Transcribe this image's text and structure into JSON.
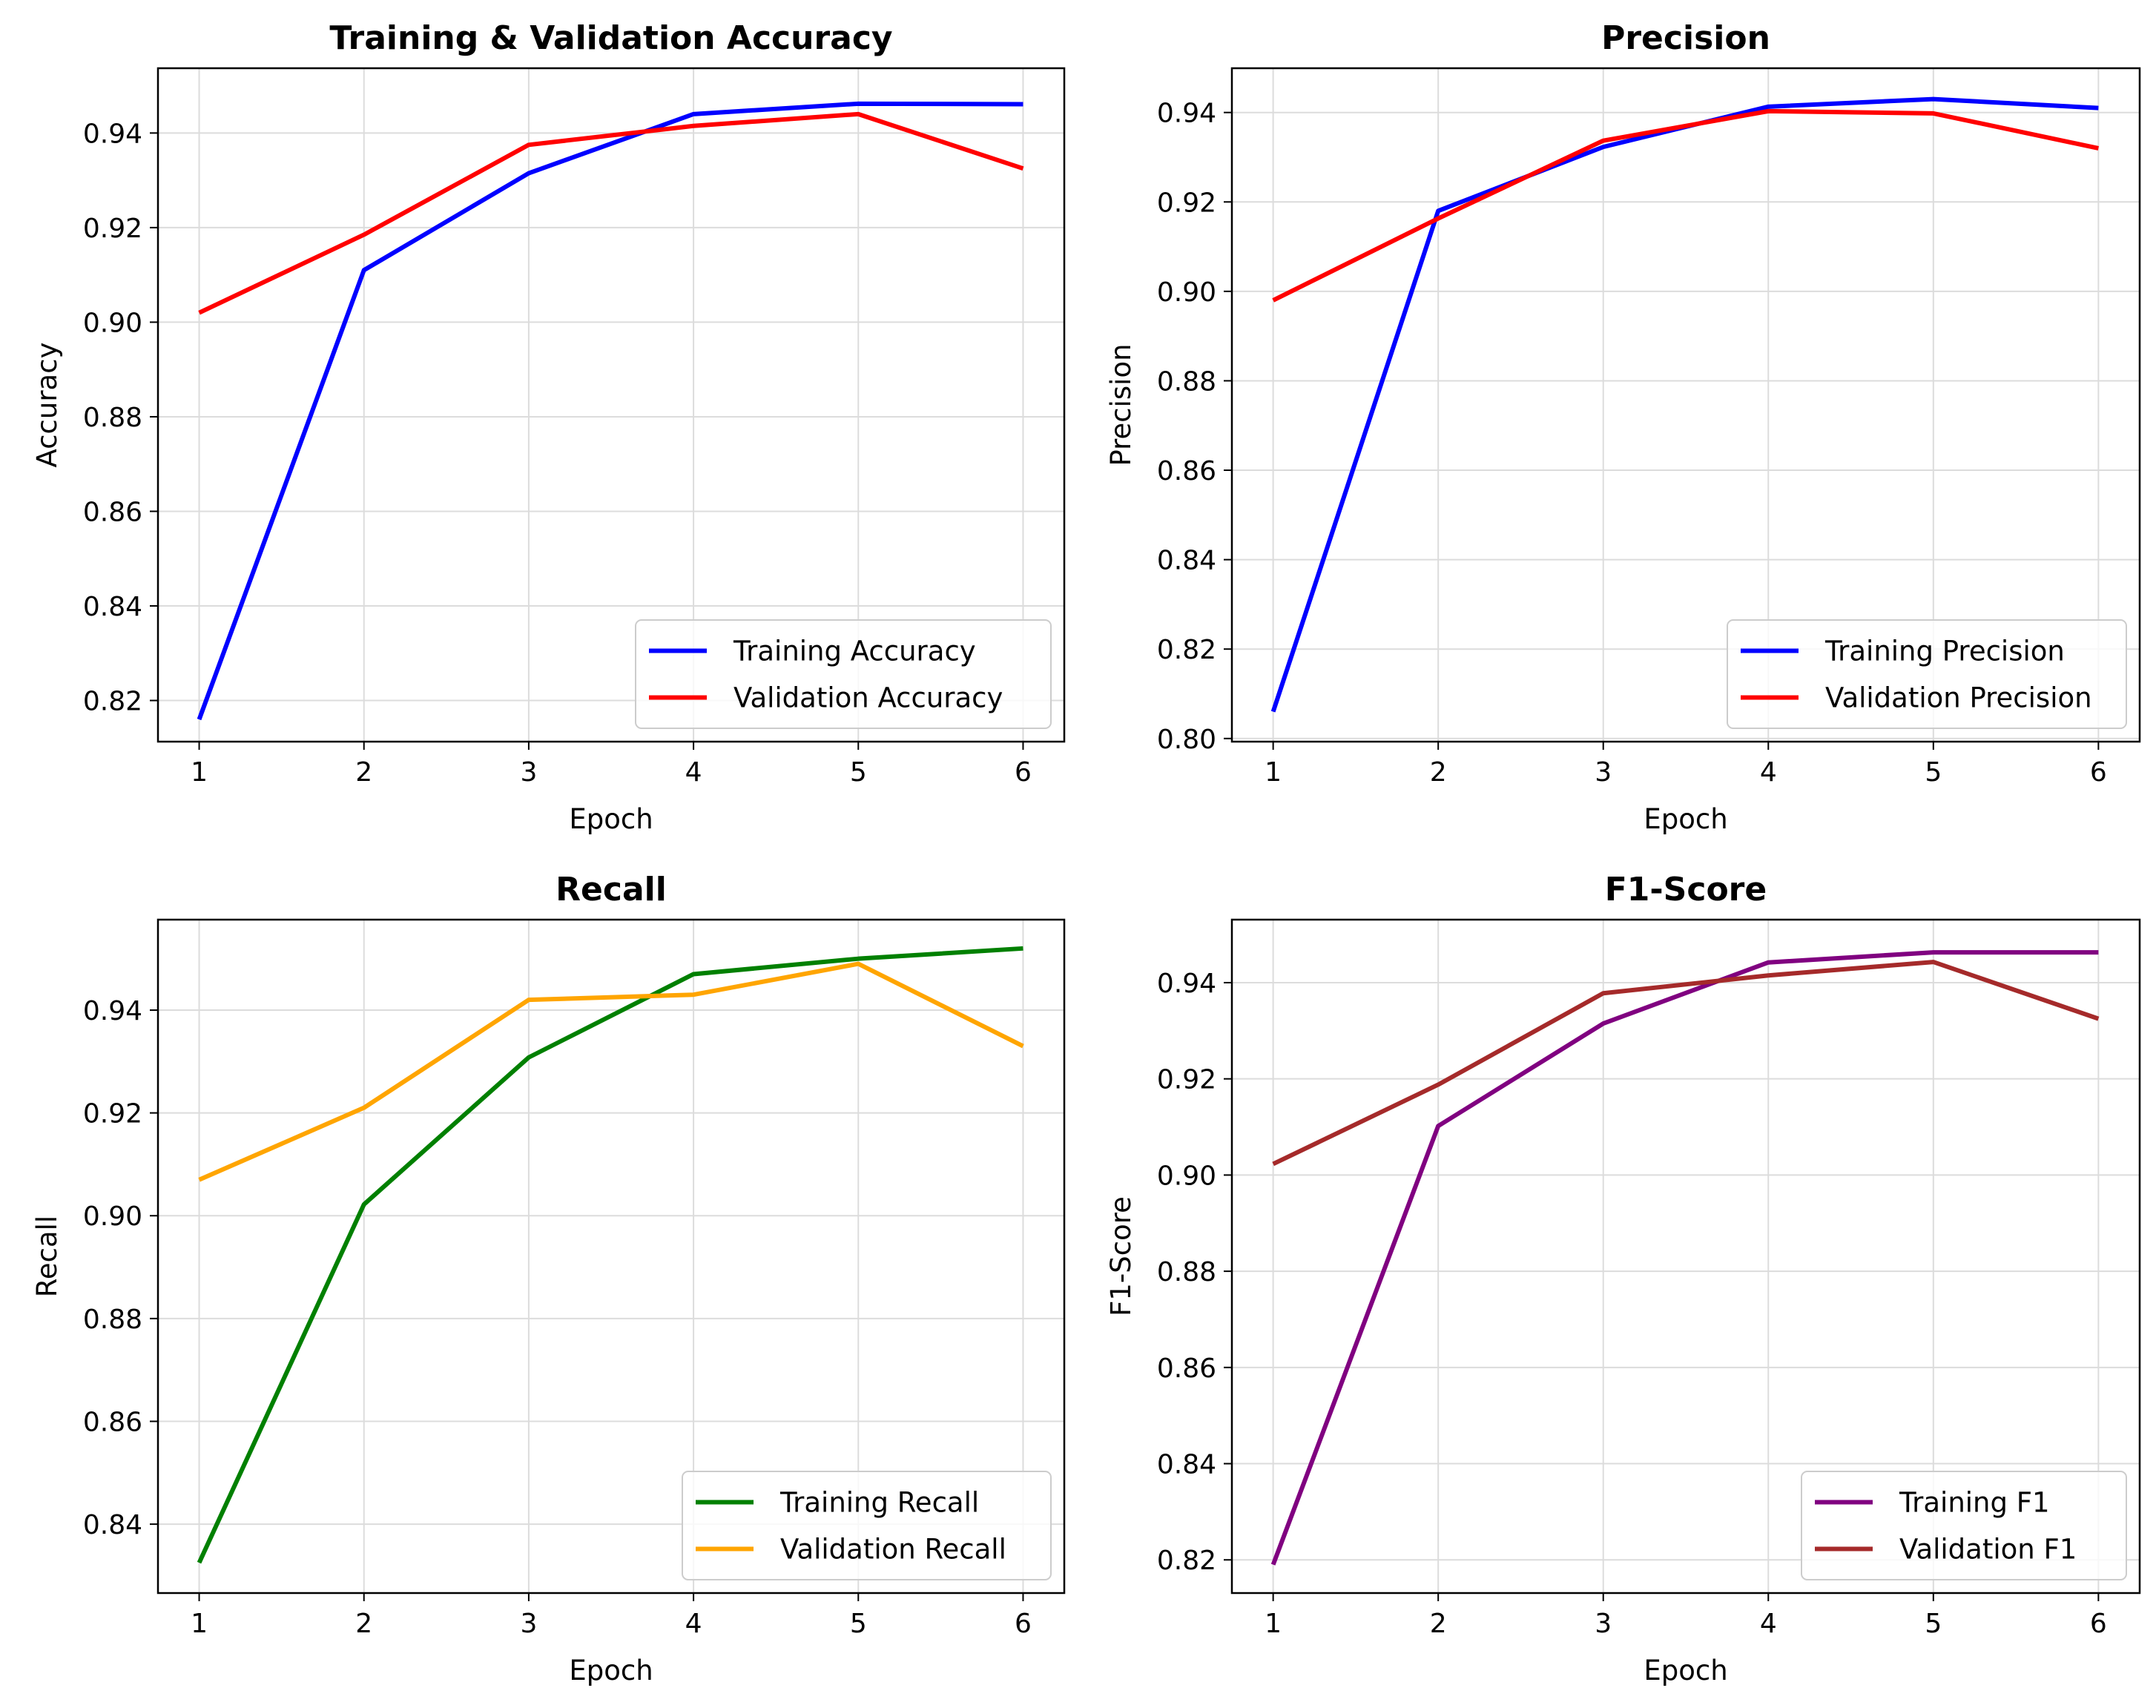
{
  "chart_data": [
    {
      "type": "line",
      "title": "Training & Validation Accuracy",
      "xlabel": "Epoch",
      "ylabel": "Accuracy",
      "x": [
        1,
        2,
        3,
        4,
        5,
        6
      ],
      "xticks": [
        "1",
        "2",
        "3",
        "4",
        "5",
        "6"
      ],
      "yticks": [
        "0.82",
        "0.84",
        "0.86",
        "0.88",
        "0.90",
        "0.92",
        "0.94"
      ],
      "xlim": [
        0.75,
        6.25
      ],
      "ylim": [
        0.8113,
        0.9537
      ],
      "grid": true,
      "legend_placement": "lower-right",
      "series": [
        {
          "name": "Training Accuracy",
          "color": "#0000ff",
          "values": [
            0.816,
            0.911,
            0.9315,
            0.944,
            0.9462,
            0.9461
          ]
        },
        {
          "name": "Validation Accuracy",
          "color": "#ff0000",
          "values": [
            0.902,
            0.9185,
            0.9375,
            0.9415,
            0.944,
            0.9325
          ]
        }
      ]
    },
    {
      "type": "line",
      "title": "Precision",
      "xlabel": "Epoch",
      "ylabel": "Precision",
      "x": [
        1,
        2,
        3,
        4,
        5,
        6
      ],
      "xticks": [
        "1",
        "2",
        "3",
        "4",
        "5",
        "6"
      ],
      "yticks": [
        "0.80",
        "0.82",
        "0.84",
        "0.86",
        "0.88",
        "0.90",
        "0.92",
        "0.94"
      ],
      "xlim": [
        0.75,
        6.25
      ],
      "ylim": [
        0.7993,
        0.9499
      ],
      "grid": true,
      "legend_placement": "lower-right",
      "series": [
        {
          "name": "Training Precision",
          "color": "#0000ff",
          "values": [
            0.806,
            0.918,
            0.9323,
            0.9413,
            0.943,
            0.941
          ]
        },
        {
          "name": "Validation Precision",
          "color": "#ff0000",
          "values": [
            0.898,
            0.9163,
            0.9337,
            0.9403,
            0.9398,
            0.932
          ]
        }
      ]
    },
    {
      "type": "line",
      "title": "Recall",
      "xlabel": "Epoch",
      "ylabel": "Recall",
      "x": [
        1,
        2,
        3,
        4,
        5,
        6
      ],
      "xticks": [
        "1",
        "2",
        "3",
        "4",
        "5",
        "6"
      ],
      "yticks": [
        "0.84",
        "0.86",
        "0.88",
        "0.90",
        "0.92",
        "0.94"
      ],
      "xlim": [
        0.75,
        6.25
      ],
      "ylim": [
        0.8266,
        0.9576
      ],
      "grid": true,
      "legend_placement": "lower-right",
      "series": [
        {
          "name": "Training Recall",
          "color": "#008000",
          "values": [
            0.8325,
            0.9022,
            0.9308,
            0.947,
            0.95,
            0.952
          ]
        },
        {
          "name": "Validation Recall",
          "color": "#ffa500",
          "values": [
            0.907,
            0.921,
            0.942,
            0.943,
            0.949,
            0.933
          ]
        }
      ]
    },
    {
      "type": "line",
      "title": "F1-Score",
      "xlabel": "Epoch",
      "ylabel": "F1-Score",
      "x": [
        1,
        2,
        3,
        4,
        5,
        6
      ],
      "xticks": [
        "1",
        "2",
        "3",
        "4",
        "5",
        "6"
      ],
      "yticks": [
        "0.82",
        "0.84",
        "0.86",
        "0.88",
        "0.90",
        "0.92",
        "0.94"
      ],
      "xlim": [
        0.75,
        6.25
      ],
      "ylim": [
        0.8131,
        0.9531
      ],
      "grid": true,
      "legend_placement": "lower-right",
      "series": [
        {
          "name": "Training F1",
          "color": "#800080",
          "values": [
            0.819,
            0.9102,
            0.9315,
            0.9442,
            0.9463,
            0.9463
          ]
        },
        {
          "name": "Validation F1",
          "color": "#a52a2a",
          "values": [
            0.9023,
            0.9188,
            0.9378,
            0.9415,
            0.9443,
            0.9325
          ]
        }
      ]
    }
  ]
}
